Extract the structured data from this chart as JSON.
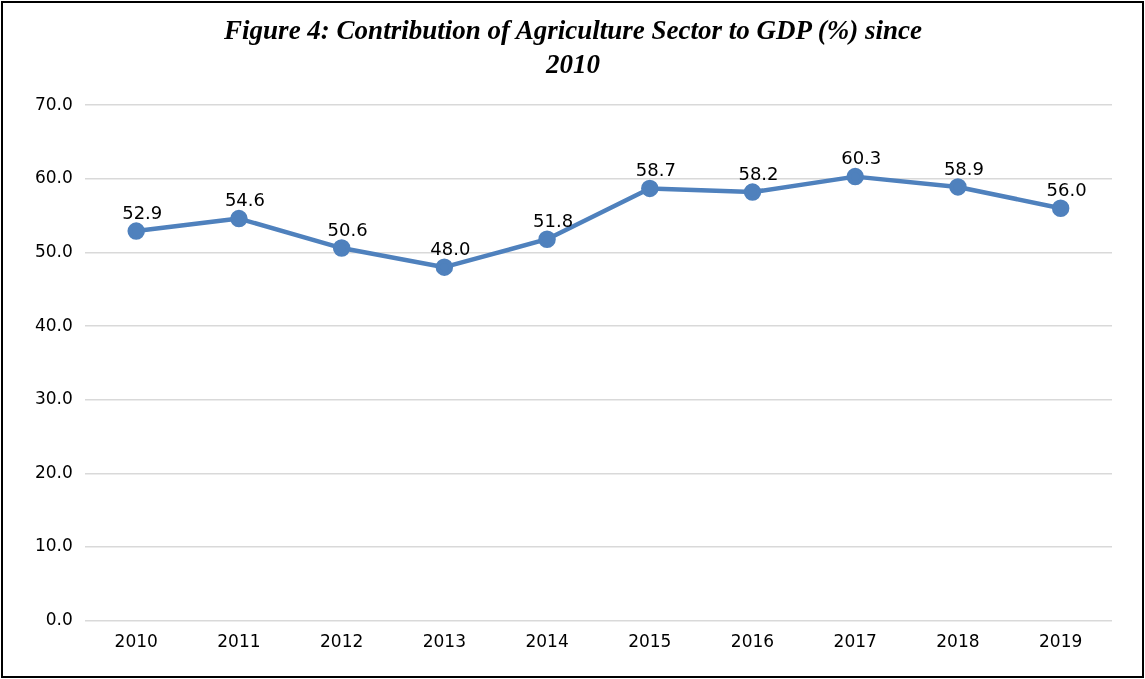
{
  "chart_data": {
    "type": "line",
    "title": "Figure 4: Contribution of Agriculture Sector to GDP (%) since 2010",
    "categories": [
      "2010",
      "2011",
      "2012",
      "2013",
      "2014",
      "2015",
      "2016",
      "2017",
      "2018",
      "2019"
    ],
    "series": [
      {
        "color": "#4f81bd",
        "values": [
          52.9,
          54.6,
          50.6,
          48.0,
          51.8,
          58.7,
          58.2,
          60.3,
          58.9,
          56.0
        ],
        "value_labels": [
          "52.9",
          "54.6",
          "50.6",
          "48.0",
          "51.8",
          "58.7",
          "58.2",
          "60.3",
          "58.9",
          "56.0"
        ]
      }
    ],
    "ylim": [
      0,
      70
    ],
    "yticks": [
      {
        "value": 0,
        "label": "0.0"
      },
      {
        "value": 10,
        "label": "10.0"
      },
      {
        "value": 20,
        "label": "20.0"
      },
      {
        "value": 30,
        "label": "30.0"
      },
      {
        "value": 40,
        "label": "40.0"
      },
      {
        "value": 50,
        "label": "50.0"
      },
      {
        "value": 60,
        "label": "60.0"
      },
      {
        "value": 70,
        "label": "70.0"
      }
    ],
    "grid": "y",
    "legend": false,
    "marker": "circle",
    "line_style": "solid"
  }
}
